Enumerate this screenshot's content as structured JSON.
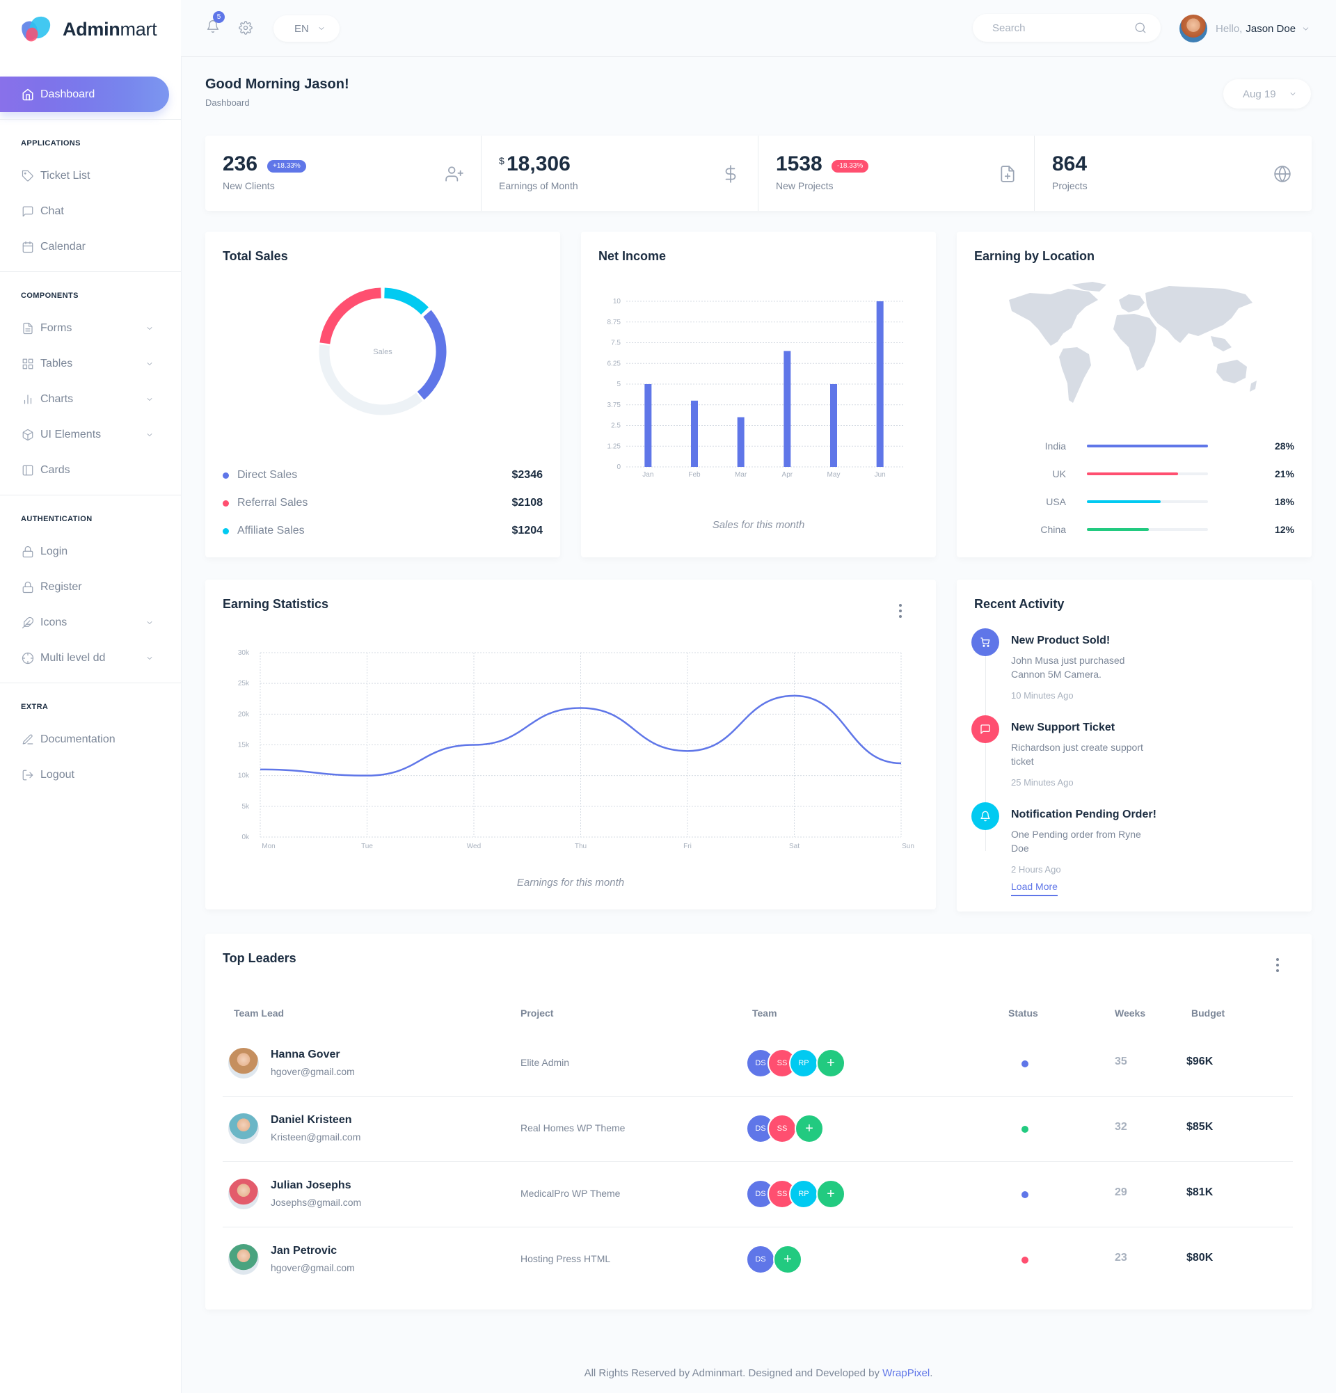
{
  "brand": {
    "name_bold": "Admin",
    "name_light": "mart"
  },
  "sidebar": {
    "active_item": "Dashboard",
    "sections": [
      {
        "caption": "APPLICATIONS",
        "items": [
          "Ticket List",
          "Chat",
          "Calendar"
        ]
      },
      {
        "caption": "COMPONENTS",
        "items": [
          "Forms",
          "Tables",
          "Charts",
          "UI Elements",
          "Cards"
        ]
      },
      {
        "caption": "AUTHENTICATION",
        "items": [
          "Login",
          "Register",
          "Icons",
          "Multi level dd"
        ]
      },
      {
        "caption": "EXTRA",
        "items": [
          "Documentation",
          "Logout"
        ]
      }
    ]
  },
  "topbar": {
    "notification_count": "5",
    "language": "EN",
    "search_placeholder": "Search",
    "greeting_prefix": "Hello,",
    "user_name": "Jason Doe"
  },
  "page": {
    "title": "Good Morning Jason!",
    "breadcrumb": "Dashboard",
    "date_select": "Aug 19"
  },
  "stats": [
    {
      "value": "236",
      "badge": "+18.33%",
      "badge_color": "#5f76e8",
      "label": "New Clients",
      "icon": "user-plus-icon"
    },
    {
      "currency": "$",
      "value": "18,306",
      "label": "Earnings of Month",
      "icon": "dollar-icon"
    },
    {
      "value": "1538",
      "badge": "-18.33%",
      "badge_color": "#ff4f70",
      "label": "New Projects",
      "icon": "file-plus-icon"
    },
    {
      "value": "864",
      "label": "Projects",
      "icon": "globe-icon"
    }
  ],
  "total_sales": {
    "title": "Total Sales",
    "center_label": "Sales",
    "legend": [
      {
        "label": "Direct Sales",
        "value": "$2346",
        "color": "#5f76e8"
      },
      {
        "label": "Referral Sales",
        "value": "$2108",
        "color": "#ff4f70"
      },
      {
        "label": "Affiliate Sales",
        "value": "$1204",
        "color": "#01caf1"
      }
    ]
  },
  "net_income": {
    "title": "Net Income",
    "caption": "Sales for this month"
  },
  "earning_location": {
    "title": "Earning by Location",
    "rows": [
      {
        "country": "India",
        "percent": "28%",
        "fill": 1.0,
        "color": "#5f76e8"
      },
      {
        "country": "UK",
        "percent": "21%",
        "fill": 0.75,
        "color": "#ff4f70"
      },
      {
        "country": "USA",
        "percent": "18%",
        "fill": 0.61,
        "color": "#01caf1"
      },
      {
        "country": "China",
        "percent": "12%",
        "fill": 0.51,
        "color": "#22ca80"
      }
    ]
  },
  "earning_statistics": {
    "title": "Earning Statistics",
    "caption": "Earnings for this month"
  },
  "recent_activity": {
    "title": "Recent Activity",
    "items": [
      {
        "title": "New Product Sold!",
        "line1": "John Musa just purchased",
        "line2": "Cannon 5M Camera.",
        "time": "10 Minutes Ago",
        "color": "#5f76e8",
        "icon": "cart-icon"
      },
      {
        "title": "New Support Ticket",
        "line1": "Richardson just create support",
        "line2": "ticket",
        "time": "25 Minutes Ago",
        "color": "#ff4f70",
        "icon": "message-icon"
      },
      {
        "title": "Notification Pending Order!",
        "line1": "One Pending order from Ryne",
        "line2": "Doe",
        "time": "2 Hours Ago",
        "color": "#01caf1",
        "icon": "bell-icon"
      }
    ],
    "load_more": "Load More"
  },
  "top_leaders": {
    "title": "Top Leaders",
    "columns": [
      "Team Lead",
      "Project",
      "Team",
      "Status",
      "Weeks",
      "Budget"
    ],
    "rows": [
      {
        "name": "Hanna Gover",
        "email": "hgover@gmail.com",
        "project": "Elite Admin",
        "team": [
          "DS",
          "SS",
          "RP"
        ],
        "status_color": "#5f76e8",
        "weeks": "35",
        "budget": "$96K",
        "avatar_color": "#c58f5f"
      },
      {
        "name": "Daniel Kristeen",
        "email": "Kristeen@gmail.com",
        "project": "Real Homes WP Theme",
        "team": [
          "DS",
          "SS"
        ],
        "status_color": "#22ca80",
        "weeks": "32",
        "budget": "$85K",
        "avatar_color": "#6bb6c6"
      },
      {
        "name": "Julian Josephs",
        "email": "Josephs@gmail.com",
        "project": "MedicalPro WP Theme",
        "team": [
          "DS",
          "SS",
          "RP"
        ],
        "status_color": "#5f76e8",
        "weeks": "29",
        "budget": "$81K",
        "avatar_color": "#e35b6b"
      },
      {
        "name": "Jan Petrovic",
        "email": "hgover@gmail.com",
        "project": "Hosting Press HTML",
        "team": [
          "DS"
        ],
        "status_color": "#ff4f70",
        "weeks": "23",
        "budget": "$80K",
        "avatar_color": "#4aa37f"
      }
    ],
    "team_colors": {
      "DS": "#5f76e8",
      "SS": "#ff4f70",
      "RP": "#01caf1",
      "add": "#22ca80"
    }
  },
  "footer": {
    "text": "All Rights Reserved by Adminmart. Designed and Developed by ",
    "link": "WrapPixel",
    "end": "."
  },
  "chart_data": [
    {
      "type": "pie",
      "title": "Total Sales",
      "categories": [
        "Direct Sales",
        "Referral Sales",
        "Affiliate Sales",
        "Remaining"
      ],
      "values": [
        2346,
        2108,
        1204,
        3400
      ],
      "colors": [
        "#5f76e8",
        "#ff4f70",
        "#01caf1",
        "#edf2f6"
      ]
    },
    {
      "type": "bar",
      "title": "Net Income",
      "categories": [
        "Jan",
        "Feb",
        "Mar",
        "Apr",
        "May",
        "Jun"
      ],
      "values": [
        5,
        4,
        3,
        7,
        5,
        10
      ],
      "ylim": [
        0,
        10
      ],
      "yticks": [
        "0",
        "1.25",
        "2.5",
        "3.75",
        "5",
        "6.25",
        "7.5",
        "8.75",
        "10"
      ],
      "xlabel": "Sales for this month",
      "color": "#5f76e8"
    },
    {
      "type": "line",
      "title": "Earning Statistics",
      "categories": [
        "Mon",
        "Tue",
        "Wed",
        "Thu",
        "Fri",
        "Sat",
        "Sun"
      ],
      "values": [
        11000,
        10000,
        15000,
        21000,
        14000,
        23000,
        12000
      ],
      "ylim": [
        0,
        30000
      ],
      "yticks": [
        "0k",
        "5k",
        "10k",
        "15k",
        "20k",
        "25k",
        "30k"
      ],
      "xlabel": "Earnings for this month",
      "color": "#5f76e8"
    }
  ]
}
